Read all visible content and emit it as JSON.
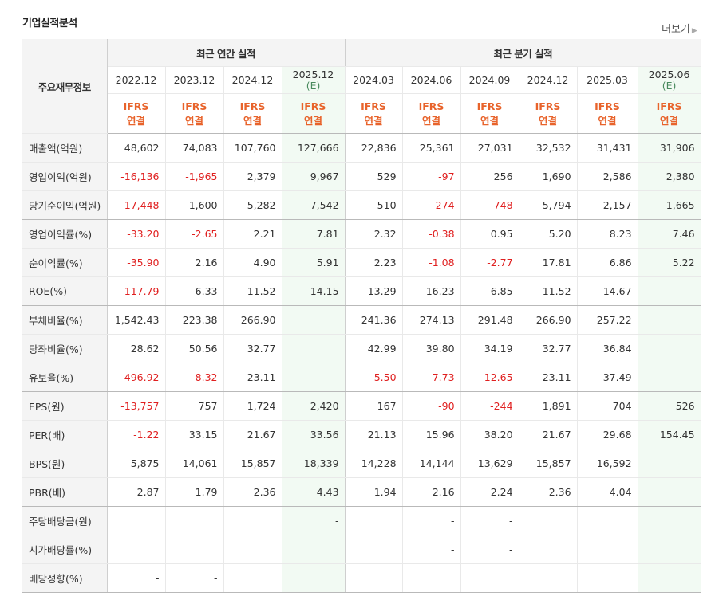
{
  "title": "기업실적분석",
  "more_label": "더보기",
  "header": {
    "label_col": "주요재무정보",
    "group_annual": "최근 연간 실적",
    "group_quarterly": "최근 분기 실적",
    "ifrs_line1": "IFRS",
    "ifrs_line2": "연결",
    "periods": [
      {
        "date": "2022.12",
        "est": ""
      },
      {
        "date": "2023.12",
        "est": ""
      },
      {
        "date": "2024.12",
        "est": ""
      },
      {
        "date": "2025.12",
        "est": "(E)"
      },
      {
        "date": "2024.03",
        "est": ""
      },
      {
        "date": "2024.06",
        "est": ""
      },
      {
        "date": "2024.09",
        "est": ""
      },
      {
        "date": "2024.12",
        "est": ""
      },
      {
        "date": "2025.03",
        "est": ""
      },
      {
        "date": "2025.06",
        "est": "(E)"
      }
    ]
  },
  "rows": [
    {
      "label": "매출액(억원)",
      "cells": [
        "48,602",
        "74,083",
        "107,760",
        "127,666",
        "22,836",
        "25,361",
        "27,031",
        "32,532",
        "31,431",
        "31,906"
      ]
    },
    {
      "label": "영업이익(억원)",
      "cells": [
        "-16,136",
        "-1,965",
        "2,379",
        "9,967",
        "529",
        "-97",
        "256",
        "1,690",
        "2,586",
        "2,380"
      ]
    },
    {
      "label": "당기순이익(억원)",
      "cells": [
        "-17,448",
        "1,600",
        "5,282",
        "7,542",
        "510",
        "-274",
        "-748",
        "5,794",
        "2,157",
        "1,665"
      ]
    },
    {
      "label": "영업이익률(%)",
      "cells": [
        "-33.20",
        "-2.65",
        "2.21",
        "7.81",
        "2.32",
        "-0.38",
        "0.95",
        "5.20",
        "8.23",
        "7.46"
      ]
    },
    {
      "label": "순이익률(%)",
      "cells": [
        "-35.90",
        "2.16",
        "4.90",
        "5.91",
        "2.23",
        "-1.08",
        "-2.77",
        "17.81",
        "6.86",
        "5.22"
      ]
    },
    {
      "label": "ROE(%)",
      "cells": [
        "-117.79",
        "6.33",
        "11.52",
        "14.15",
        "13.29",
        "16.23",
        "6.85",
        "11.52",
        "14.67",
        ""
      ]
    },
    {
      "label": "부채비율(%)",
      "cells": [
        "1,542.43",
        "223.38",
        "266.90",
        "",
        "241.36",
        "274.13",
        "291.48",
        "266.90",
        "257.22",
        ""
      ]
    },
    {
      "label": "당좌비율(%)",
      "cells": [
        "28.62",
        "50.56",
        "32.77",
        "",
        "42.99",
        "39.80",
        "34.19",
        "32.77",
        "36.84",
        ""
      ]
    },
    {
      "label": "유보율(%)",
      "cells": [
        "-496.92",
        "-8.32",
        "23.11",
        "",
        "-5.50",
        "-7.73",
        "-12.65",
        "23.11",
        "37.49",
        ""
      ]
    },
    {
      "label": "EPS(원)",
      "cells": [
        "-13,757",
        "757",
        "1,724",
        "2,420",
        "167",
        "-90",
        "-244",
        "1,891",
        "704",
        "526"
      ]
    },
    {
      "label": "PER(배)",
      "cells": [
        "-1.22",
        "33.15",
        "21.67",
        "33.56",
        "21.13",
        "15.96",
        "38.20",
        "21.67",
        "29.68",
        "154.45"
      ]
    },
    {
      "label": "BPS(원)",
      "cells": [
        "5,875",
        "14,061",
        "15,857",
        "18,339",
        "14,228",
        "14,144",
        "13,629",
        "15,857",
        "16,592",
        ""
      ]
    },
    {
      "label": "PBR(배)",
      "cells": [
        "2.87",
        "1.79",
        "2.36",
        "4.43",
        "1.94",
        "2.16",
        "2.24",
        "2.36",
        "4.04",
        ""
      ]
    },
    {
      "label": "주당배당금(원)",
      "cells": [
        "",
        "",
        "",
        "-",
        "",
        "-",
        "-",
        "",
        "",
        ""
      ]
    },
    {
      "label": "시가배당률(%)",
      "cells": [
        "",
        "",
        "",
        "",
        "",
        "-",
        "-",
        "",
        "",
        ""
      ]
    },
    {
      "label": "배당성향(%)",
      "cells": [
        "-",
        "-",
        "",
        "",
        "",
        "",
        "",
        "",
        "",
        ""
      ]
    }
  ],
  "colors": {
    "negative": "#e02020",
    "ifrs": "#e8632b",
    "estimate_bg": "#f2faf3",
    "header_bg": "#f4f4f4"
  }
}
